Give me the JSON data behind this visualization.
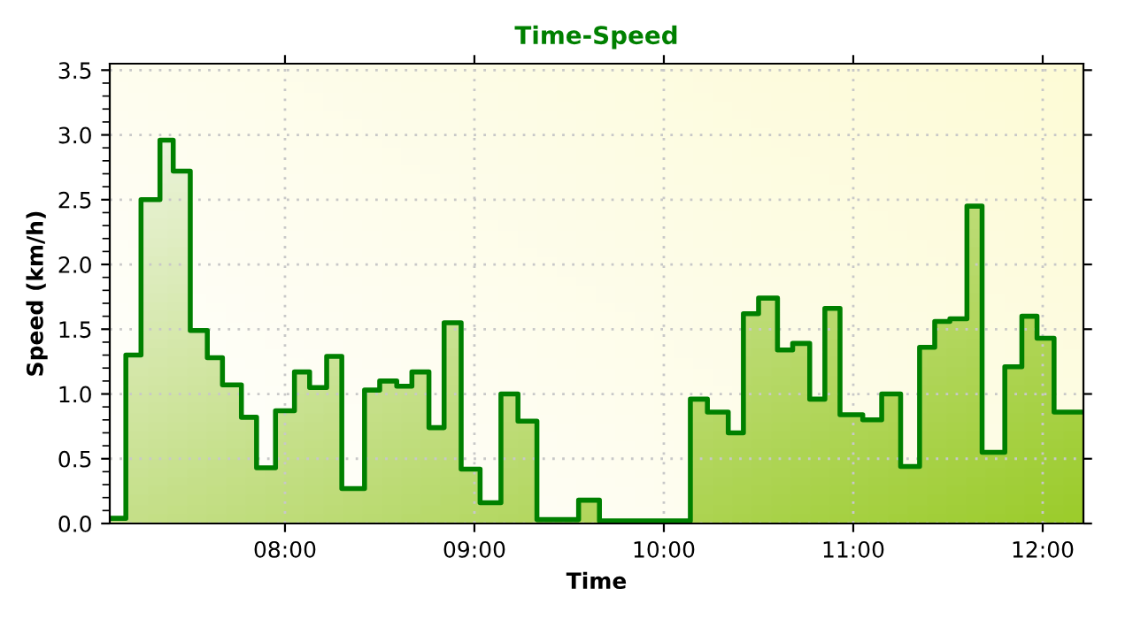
{
  "chart_data": {
    "type": "step",
    "title": "Time-Speed",
    "xlabel": "Time",
    "ylabel": "Speed (km/h)",
    "x": [
      7.075,
      7.16,
      7.24,
      7.34,
      7.41,
      7.5,
      7.59,
      7.67,
      7.77,
      7.85,
      7.95,
      8.05,
      8.13,
      8.22,
      8.3,
      8.42,
      8.5,
      8.59,
      8.67,
      8.76,
      8.84,
      8.93,
      9.03,
      9.14,
      9.23,
      9.33,
      9.55,
      9.66,
      10.14,
      10.23,
      10.34,
      10.42,
      10.5,
      10.6,
      10.68,
      10.77,
      10.85,
      10.93,
      11.05,
      11.15,
      11.25,
      11.35,
      11.43,
      11.51,
      11.6,
      11.68,
      11.8,
      11.89,
      11.97,
      12.06,
      12.215
    ],
    "series": [
      {
        "color": "#008000",
        "values": [
          0.04,
          1.3,
          2.5,
          2.96,
          2.72,
          1.49,
          1.28,
          1.07,
          0.82,
          0.43,
          0.87,
          1.17,
          1.05,
          1.29,
          0.27,
          1.03,
          1.1,
          1.06,
          1.17,
          0.74,
          1.55,
          0.42,
          0.16,
          1.0,
          0.79,
          0.03,
          0.18,
          0.02,
          0.96,
          0.86,
          0.7,
          1.62,
          1.74,
          1.34,
          1.39,
          0.96,
          1.66,
          0.84,
          0.8,
          1.0,
          0.44,
          1.36,
          1.56,
          1.58,
          2.45,
          0.55,
          1.21,
          1.6,
          1.43,
          0.86,
          0.86
        ]
      }
    ],
    "xlim": [
      7.075,
      12.215
    ],
    "ylim": [
      0,
      3.55
    ],
    "xticks": [
      {
        "value": 8,
        "label": "08:00"
      },
      {
        "value": 9,
        "label": "09:00"
      },
      {
        "value": 10,
        "label": "10:00"
      },
      {
        "value": 11,
        "label": "11:00"
      },
      {
        "value": 12,
        "label": "12:00"
      }
    ],
    "yticks": [
      {
        "value": 0,
        "label": "0.0"
      },
      {
        "value": 0.5,
        "label": "0.5"
      },
      {
        "value": 1,
        "label": "1.0"
      },
      {
        "value": 1.5,
        "label": "1.5"
      },
      {
        "value": 2,
        "label": "2.0"
      },
      {
        "value": 2.5,
        "label": "2.5"
      },
      {
        "value": 3,
        "label": "3.0"
      },
      {
        "value": 3.5,
        "label": "3.5"
      }
    ],
    "grid": true,
    "line_style": "solid",
    "marker": "none"
  }
}
